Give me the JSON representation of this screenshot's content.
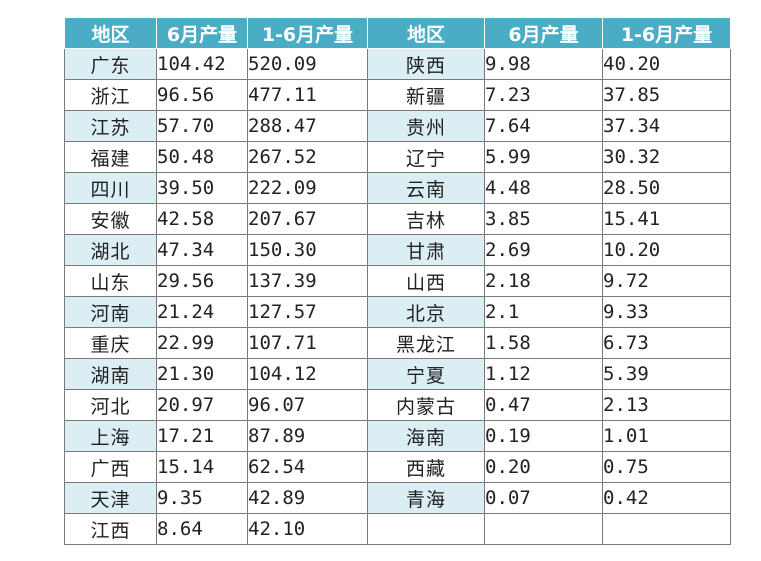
{
  "table": {
    "headers": [
      "地区",
      "6月产量",
      "1-6月产量",
      "地区",
      "6月产量",
      "1-6月产量"
    ],
    "rows": [
      [
        "广东",
        "104.42",
        "520.09",
        "陕西",
        "9.98",
        "40.20"
      ],
      [
        "浙江",
        "96.56",
        "477.11",
        "新疆",
        "7.23",
        "37.85"
      ],
      [
        "江苏",
        "57.70",
        "288.47",
        "贵州",
        "7.64",
        "37.34"
      ],
      [
        "福建",
        "50.48",
        "267.52",
        "辽宁",
        "5.99",
        "30.32"
      ],
      [
        "四川",
        "39.50",
        "222.09",
        "云南",
        "4.48",
        "28.50"
      ],
      [
        "安徽",
        "42.58",
        "207.67",
        "吉林",
        "3.85",
        "15.41"
      ],
      [
        "湖北",
        "47.34",
        "150.30",
        "甘肃",
        "2.69",
        "10.20"
      ],
      [
        "山东",
        "29.56",
        "137.39",
        "山西",
        "2.18",
        "9.72"
      ],
      [
        "河南",
        "21.24",
        "127.57",
        "北京",
        "2.1",
        "9.33"
      ],
      [
        "重庆",
        "22.99",
        "107.71",
        "黑龙江",
        "1.58",
        "6.73"
      ],
      [
        "湖南",
        "21.30",
        "104.12",
        "宁夏",
        "1.12",
        "5.39"
      ],
      [
        "河北",
        "20.97",
        "96.07",
        "内蒙古",
        "0.47",
        "2.13"
      ],
      [
        "上海",
        "17.21",
        "87.89",
        "海南",
        "0.19",
        "1.01"
      ],
      [
        "广西",
        "15.14",
        "62.54",
        "西藏",
        "0.20",
        "0.75"
      ],
      [
        "天津",
        "9.35",
        "42.89",
        "青海",
        "0.07",
        "0.42"
      ],
      [
        "江西",
        "8.64",
        "42.10",
        "",
        "",
        ""
      ]
    ]
  }
}
